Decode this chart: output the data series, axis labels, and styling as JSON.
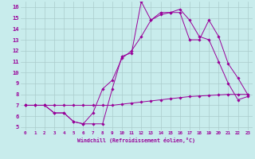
{
  "xlabel": "Windchill (Refroidissement éolien,°C)",
  "background_color": "#c8ecec",
  "line_color": "#990099",
  "grid_color": "#aacccc",
  "xlim": [
    -0.5,
    23.5
  ],
  "ylim": [
    4.7,
    16.5
  ],
  "xticks": [
    0,
    1,
    2,
    3,
    4,
    5,
    6,
    7,
    8,
    9,
    10,
    11,
    12,
    13,
    14,
    15,
    16,
    17,
    18,
    19,
    20,
    21,
    22,
    23
  ],
  "yticks": [
    5,
    6,
    7,
    8,
    9,
    10,
    11,
    12,
    13,
    14,
    15,
    16
  ],
  "series1_x": [
    0,
    1,
    2,
    3,
    4,
    5,
    6,
    7,
    8,
    9,
    10,
    11,
    12,
    13,
    14,
    15,
    16,
    17,
    18,
    19,
    20,
    21,
    22,
    23
  ],
  "series1_y": [
    7.0,
    7.0,
    7.0,
    6.3,
    6.3,
    5.5,
    5.3,
    5.3,
    5.3,
    8.5,
    11.5,
    11.8,
    16.5,
    14.8,
    15.5,
    15.5,
    15.5,
    13.0,
    13.0,
    14.8,
    13.3,
    10.8,
    9.5,
    8.0
  ],
  "series2_x": [
    0,
    1,
    2,
    3,
    4,
    5,
    6,
    7,
    8,
    9,
    10,
    11,
    12,
    13,
    14,
    15,
    16,
    17,
    18,
    19,
    20,
    21,
    22,
    23
  ],
  "series2_y": [
    7.0,
    7.0,
    7.0,
    6.3,
    6.3,
    5.5,
    5.3,
    6.3,
    8.5,
    9.3,
    11.3,
    12.0,
    13.3,
    14.8,
    15.3,
    15.5,
    15.8,
    14.8,
    13.3,
    13.0,
    11.0,
    9.0,
    7.5,
    7.8
  ],
  "series3_x": [
    0,
    1,
    2,
    3,
    4,
    5,
    6,
    7,
    8,
    9,
    10,
    11,
    12,
    13,
    14,
    15,
    16,
    17,
    18,
    19,
    20,
    21,
    22,
    23
  ],
  "series3_y": [
    7.0,
    7.0,
    7.0,
    7.0,
    7.0,
    7.0,
    7.0,
    7.0,
    7.0,
    7.0,
    7.1,
    7.2,
    7.3,
    7.4,
    7.5,
    7.6,
    7.7,
    7.8,
    7.85,
    7.9,
    7.95,
    8.0,
    8.0,
    8.0
  ]
}
